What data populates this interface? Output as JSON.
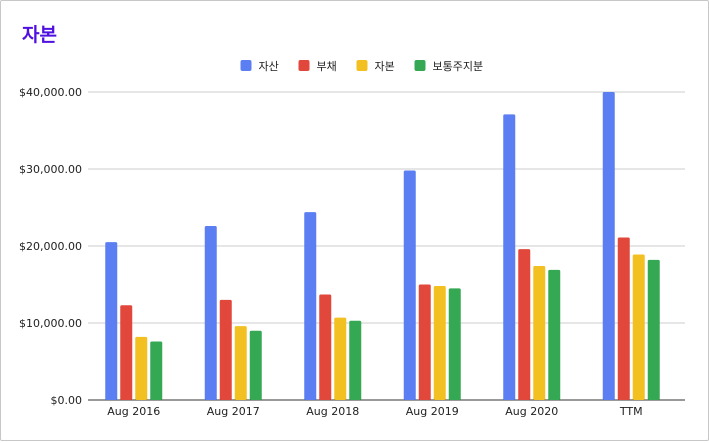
{
  "chart_data": {
    "type": "bar",
    "title": "자본",
    "categories": [
      "Aug 2016",
      "Aug 2017",
      "Aug 2018",
      "Aug 2019",
      "Aug 2020",
      "TTM"
    ],
    "series": [
      {
        "name": "자산",
        "color": "#5b7ff2",
        "values": [
          20500,
          22600,
          24400,
          29800,
          37100,
          40000
        ]
      },
      {
        "name": "부채",
        "color": "#e2473b",
        "values": [
          12300,
          13000,
          13700,
          15000,
          19600,
          21100
        ]
      },
      {
        "name": "자본",
        "color": "#f3c021",
        "values": [
          8200,
          9600,
          10700,
          14800,
          17400,
          18900
        ]
      },
      {
        "name": "보통주지분",
        "color": "#35a853",
        "values": [
          7600,
          9000,
          10300,
          14500,
          16900,
          18200
        ]
      }
    ],
    "ylim": [
      0,
      40000
    ],
    "yticks": [
      "$0.00",
      "$10,000.00",
      "$20,000.00",
      "$30,000.00",
      "$40,000.00"
    ],
    "legend_position": "top-center",
    "grid": true
  }
}
